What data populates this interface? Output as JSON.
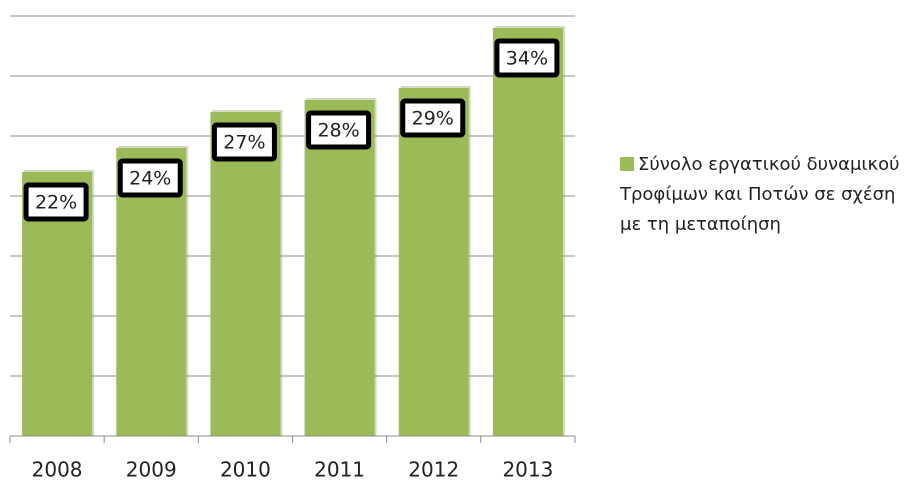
{
  "chart_data": {
    "type": "bar",
    "categories": [
      "2008",
      "2009",
      "2010",
      "2011",
      "2012",
      "2013"
    ],
    "series": [
      {
        "name": "Σύνολο εργατικού δυναμικού Τροφίμων και Ποτών σε σχέση με τη μεταποίηση",
        "color": "#9bbb59",
        "values": [
          22,
          24,
          27,
          28,
          29,
          34
        ],
        "value_labels": [
          "22%",
          "24%",
          "27%",
          "28%",
          "29%",
          "34%"
        ]
      }
    ],
    "ylim": [
      0,
      35
    ],
    "yticks": [
      0,
      5,
      10,
      15,
      20,
      25,
      30,
      35
    ],
    "grid": true,
    "legend": "right"
  }
}
